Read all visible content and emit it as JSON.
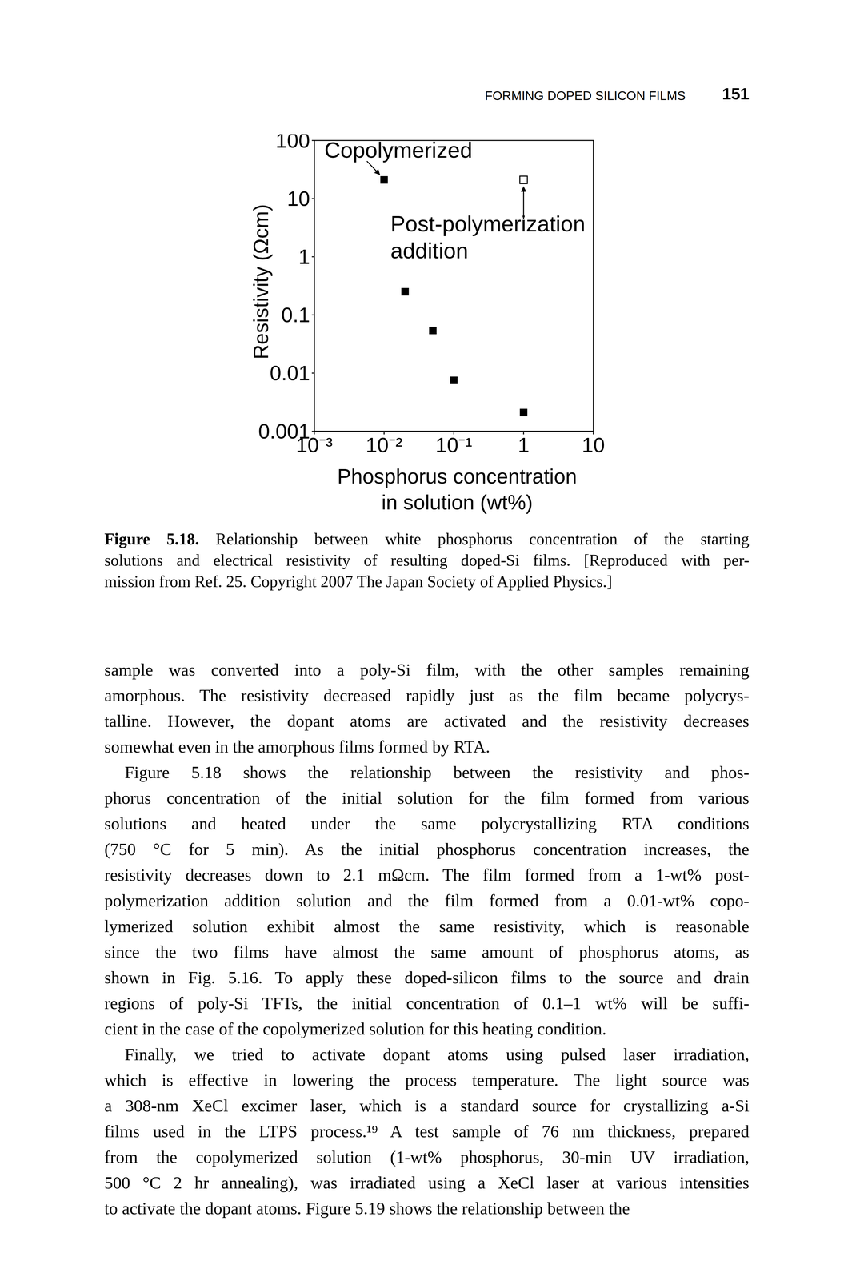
{
  "header": "FORMING DOPED SILICON FILMS",
  "page_number": "151",
  "chart_data": {
    "type": "scatter",
    "x_label": "Phosphorus concentration\nin solution (wt%)",
    "y_label": "Resistivity (Ωcm)",
    "log": true,
    "xlim": [
      0.001,
      10
    ],
    "ylim": [
      0.001,
      100
    ],
    "xticks": [
      {
        "value": 0.001,
        "label": "10⁻³"
      },
      {
        "value": 0.01,
        "label": "10⁻²"
      },
      {
        "value": 0.1,
        "label": "10⁻¹"
      },
      1,
      10
    ],
    "yticks": [
      0.001,
      0.01,
      0.1,
      1,
      10,
      100
    ],
    "series": [
      {
        "name": "Copolymerized",
        "color": "#000000",
        "marker": "square",
        "x": [
          0.01,
          0.02,
          0.05,
          0.1,
          1
        ],
        "values": [
          21,
          0.25,
          0.054,
          0.0075,
          0.0021
        ]
      },
      {
        "name": "Post-polymerization addition",
        "color": "#000000",
        "marker": "square-open",
        "x": [
          1
        ],
        "values": [
          21
        ]
      }
    ]
  },
  "caption": {
    "label": "Figure 5.18.",
    "lines": [
      "Relationship between white phosphorus concentration of the starting",
      "solutions and electrical resistivity of resulting doped-Si films. [Reproduced with per-",
      "mission from Ref. 25. Copyright 2007 The Japan Society of Applied Physics.]"
    ]
  },
  "paragraphs": [
    [
      "sample was converted into a poly-Si film, with the other samples remaining",
      "amorphous. The resistivity decreased rapidly just as the film became polycrys-",
      "talline. However, the dopant atoms are activated and the resistivity decreases",
      "somewhat even in the amorphous films formed by RTA."
    ],
    [
      "Figure 5.18 shows the relationship between the resistivity and phos-",
      "phorus concentration of the initial solution for the film formed from various",
      "solutions and heated under the same polycrystallizing RTA conditions",
      "(750 °C for 5 min). As the initial phosphorus concentration increases, the",
      "resistivity decreases down to 2.1 mΩcm. The film formed from a 1-wt% post-",
      "polymerization addition solution and the film formed from a 0.01-wt% copo-",
      "lymerized solution exhibit almost the same resistivity, which is reasonable",
      "since the two films have almost the same amount of phosphorus atoms, as",
      "shown in Fig. 5.16. To apply these doped-silicon films to the source and drain",
      "regions of poly-Si TFTs, the initial concentration of 0.1–1 wt% will be suffi-",
      "cient in the case of the copolymerized solution for this heating condition."
    ],
    [
      "Finally, we tried to activate dopant atoms using pulsed laser irradiation,",
      "which is effective in lowering the process temperature. The light source was",
      "a 308-nm XeCl excimer laser, which is a standard source for crystallizing a-Si",
      "films used in the LTPS process.¹⁹ A test sample of 76 nm thickness, prepared",
      "from the copolymerized solution (1-wt% phosphorus, 30-min UV irradiation,",
      "500 °C 2 hr annealing), was irradiated using a XeCl laser at various intensities",
      "to activate the dopant atoms. Figure 5.19 shows the relationship between the"
    ]
  ]
}
